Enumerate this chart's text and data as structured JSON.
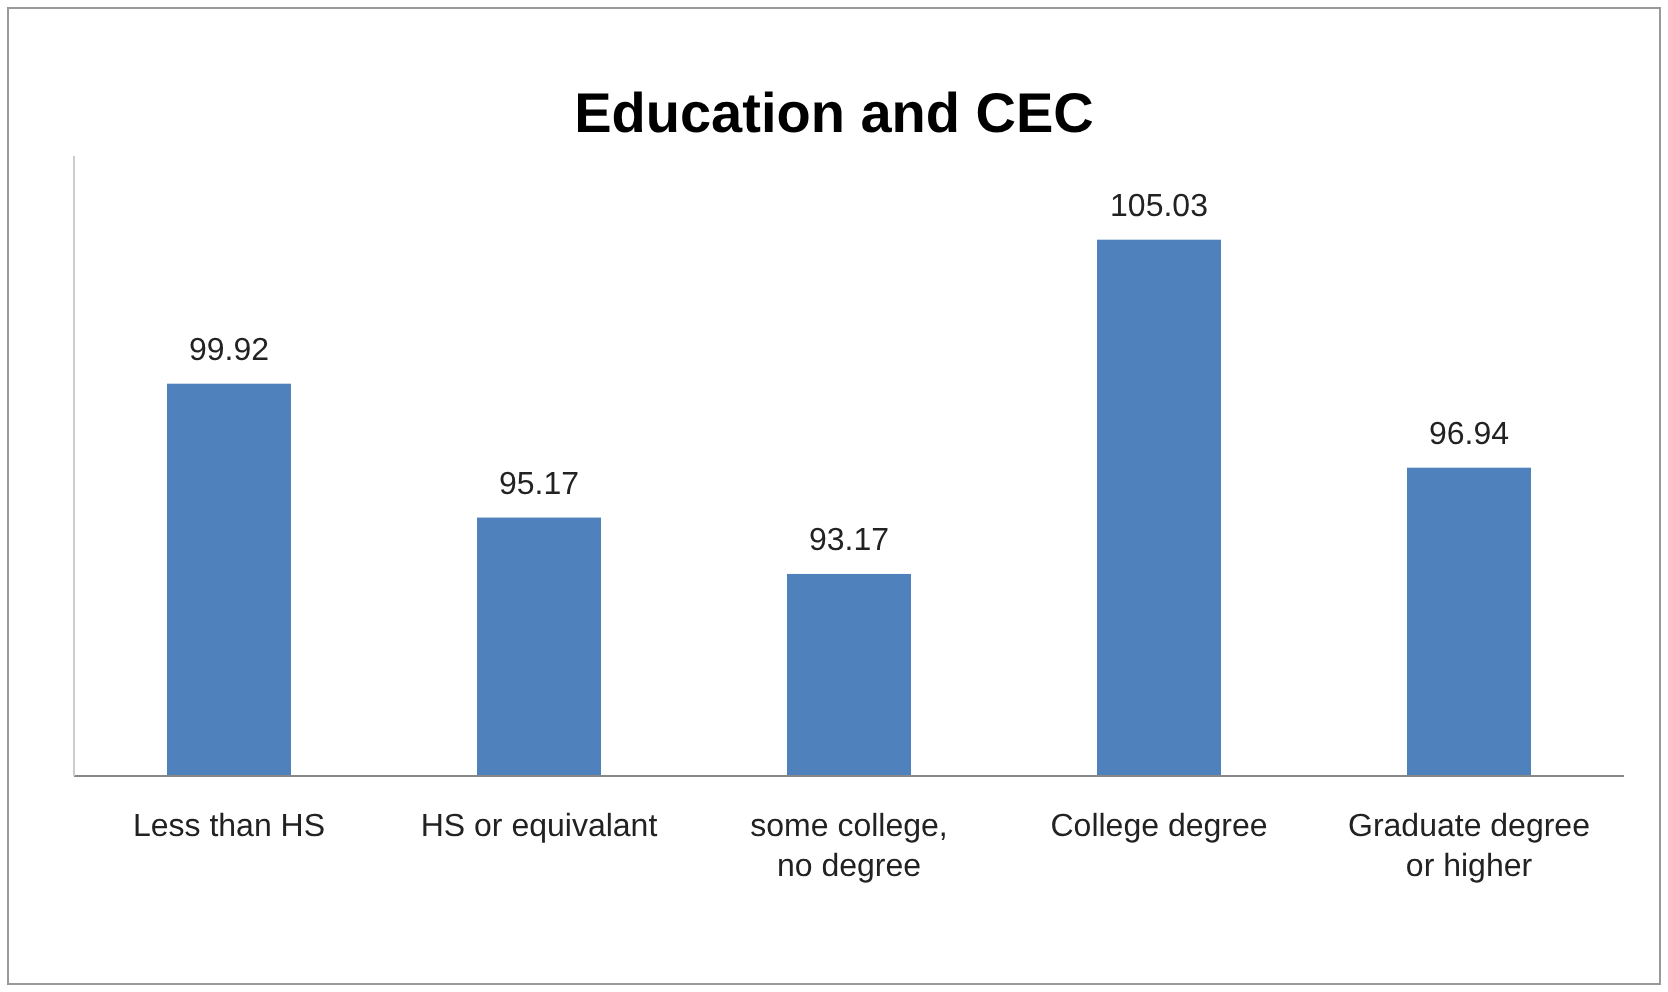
{
  "chart_data": {
    "type": "bar",
    "title": "Education and CEC",
    "categories": [
      "Less than HS",
      "HS or equivalant",
      "some college, no degree",
      "College degree",
      "Graduate degree or higher"
    ],
    "values": [
      99.92,
      95.17,
      93.17,
      105.03,
      96.94
    ],
    "color": "#4f81bd",
    "ylim": [
      86,
      108
    ],
    "tick_labels": "x",
    "data_labels": true
  }
}
